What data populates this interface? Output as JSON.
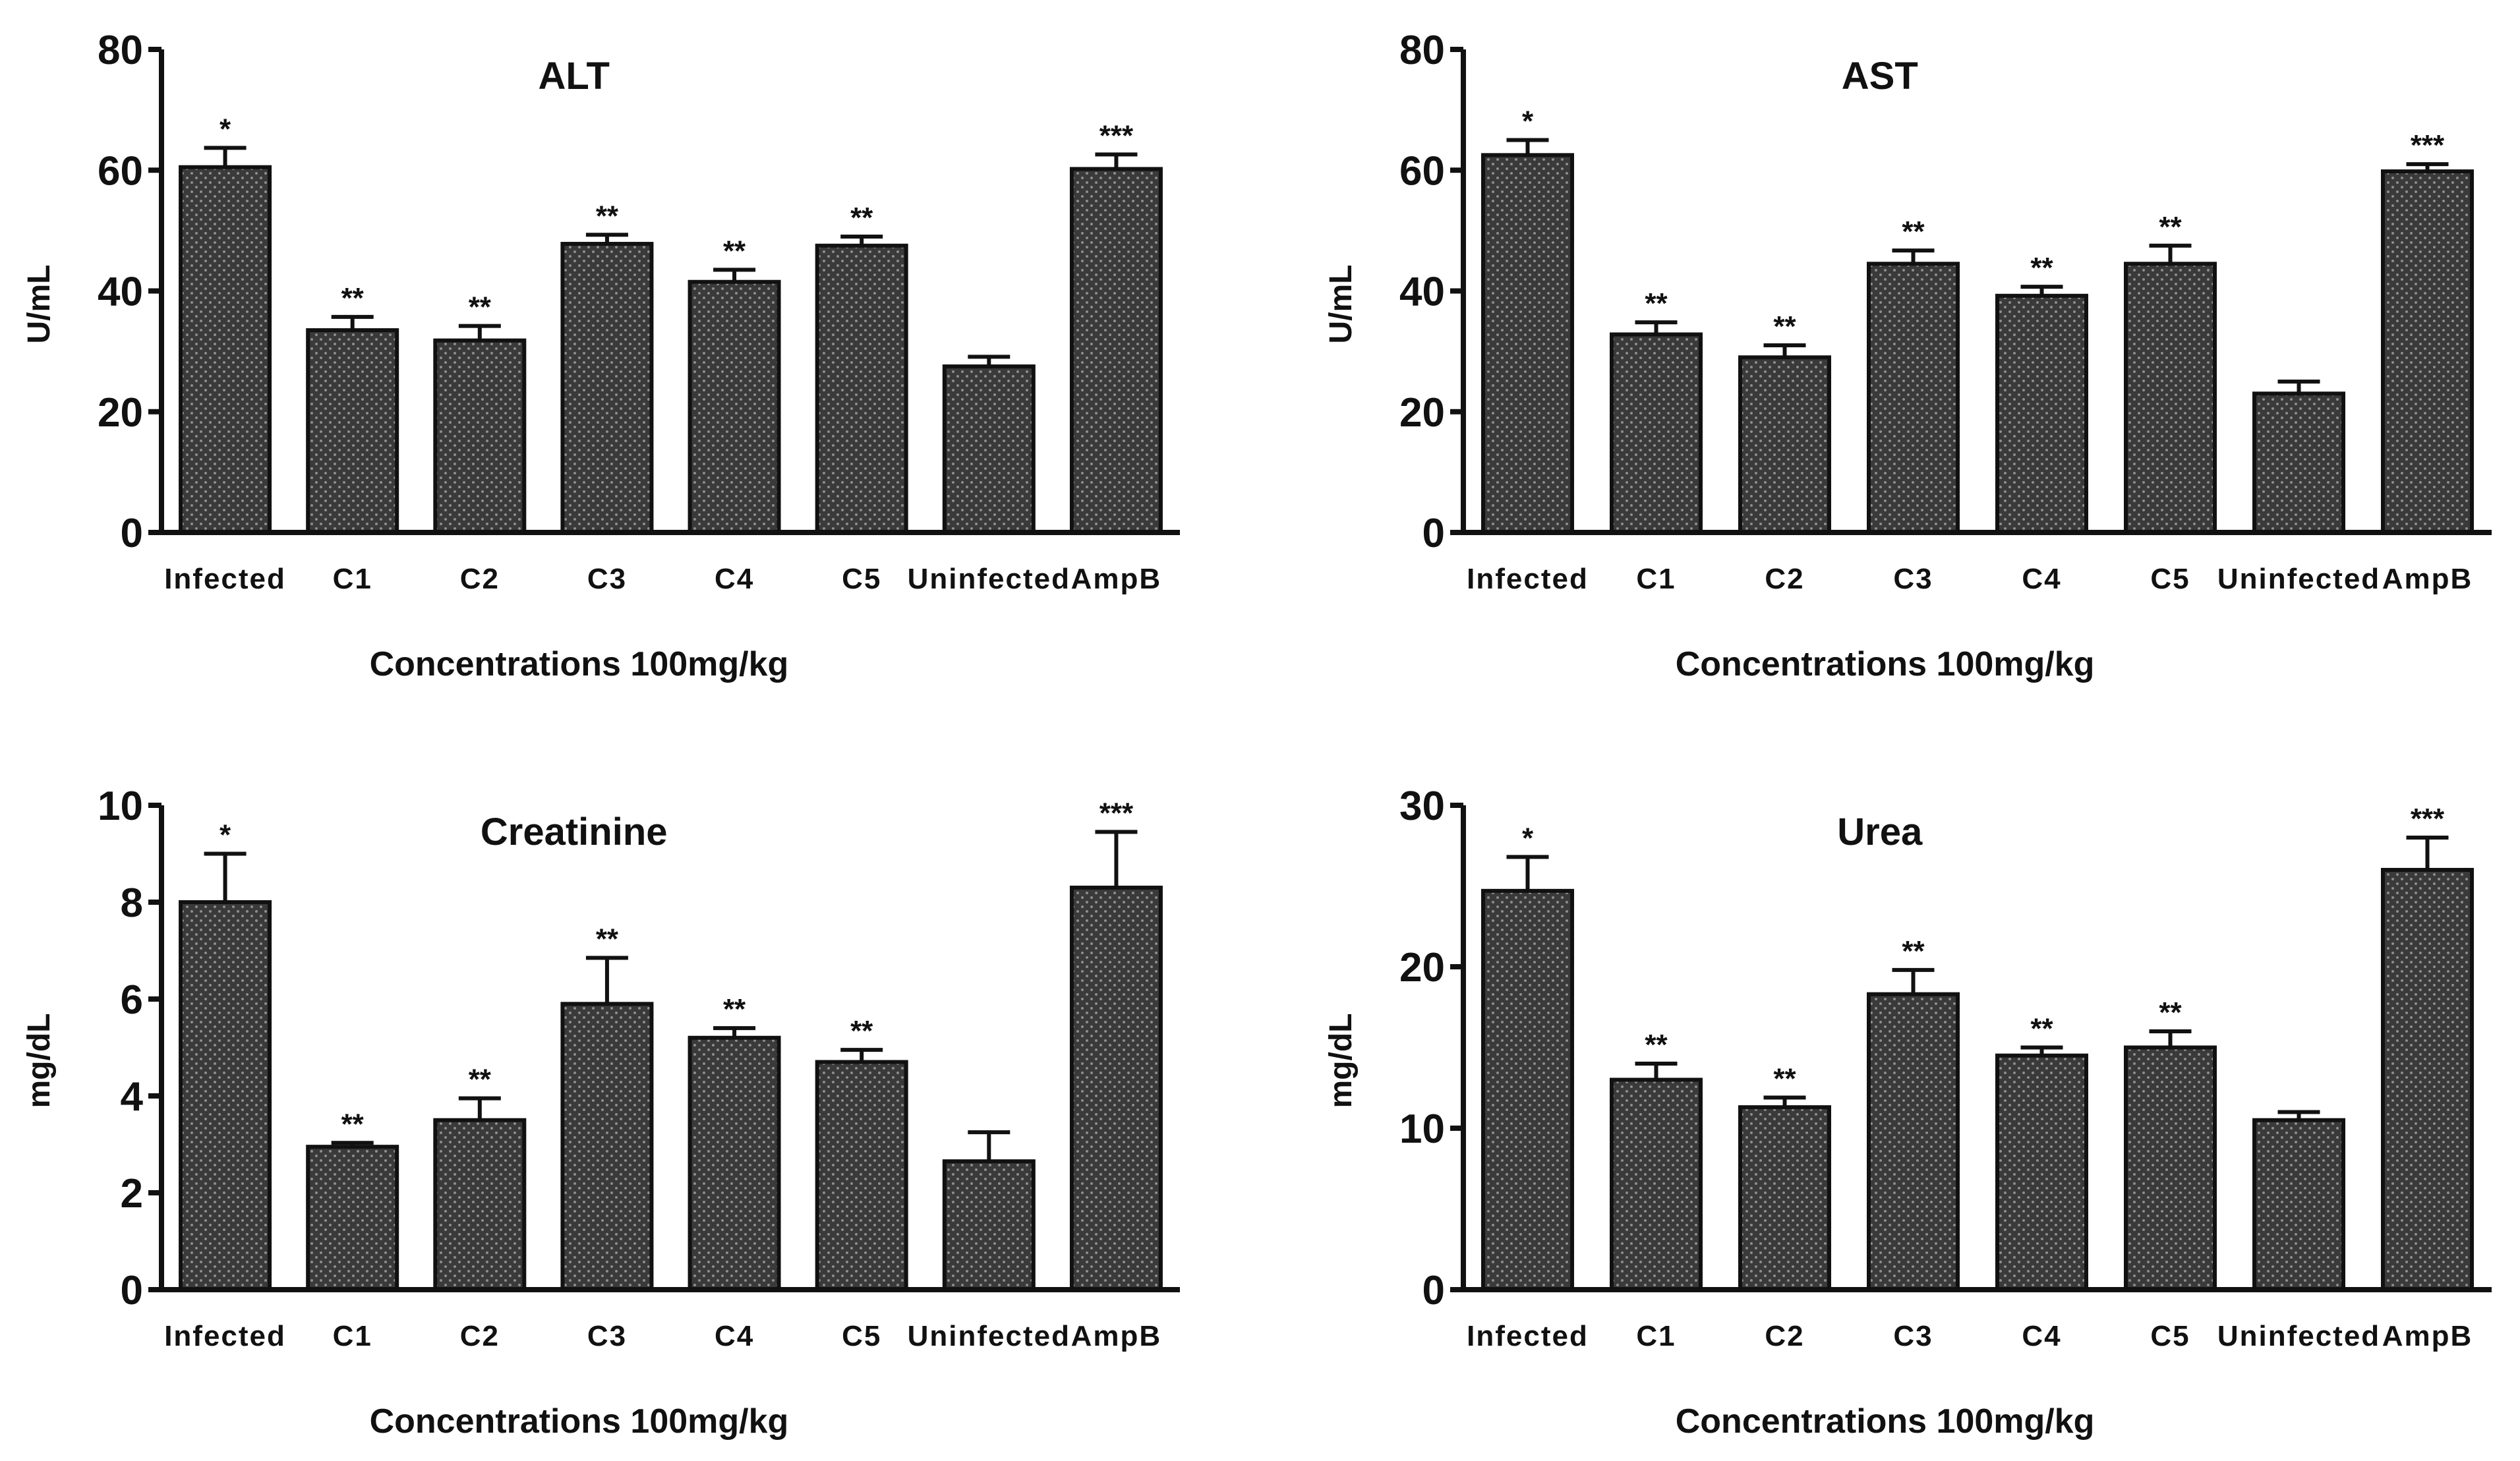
{
  "figure": {
    "background": "#ffffff",
    "bar_color": "#3a3a3a",
    "axis_color": "#111111"
  },
  "chart_data": [
    {
      "type": "bar",
      "title": "ALT",
      "xlabel": "Concentrations 100mg/kg",
      "ylabel": "U/mL",
      "ylim": [
        0,
        80
      ],
      "yticks": [
        0,
        20,
        40,
        60,
        80
      ],
      "categories": [
        "Infected",
        "C1",
        "C2",
        "C3",
        "C4",
        "C5",
        "Uninfected",
        "AmpB"
      ],
      "values": [
        60.5,
        33.5,
        31.8,
        47.8,
        41.5,
        47.5,
        27.5,
        60.2
      ],
      "errors": [
        3.2,
        2.2,
        2.4,
        1.5,
        2.0,
        1.5,
        1.6,
        2.4
      ],
      "significance": [
        "*",
        "**",
        "**",
        "**",
        "**",
        "**",
        "",
        "***"
      ]
    },
    {
      "type": "bar",
      "title": "AST",
      "xlabel": "Concentrations 100mg/kg",
      "ylabel": "U/mL",
      "ylim": [
        0,
        80
      ],
      "yticks": [
        0,
        20,
        40,
        60,
        80
      ],
      "categories": [
        "Infected",
        "C1",
        "C2",
        "C3",
        "C4",
        "C5",
        "Uninfected",
        "AmpB"
      ],
      "values": [
        62.5,
        32.8,
        29.0,
        44.5,
        39.2,
        44.5,
        23.0,
        59.8
      ],
      "errors": [
        2.5,
        2.0,
        2.0,
        2.2,
        1.5,
        3.0,
        2.0,
        1.2
      ],
      "significance": [
        "*",
        "**",
        "**",
        "**",
        "**",
        "**",
        "",
        "***"
      ]
    },
    {
      "type": "bar",
      "title": "Creatinine",
      "xlabel": "Concentrations 100mg/kg",
      "ylabel": "mg/dL",
      "ylim": [
        0,
        10
      ],
      "yticks": [
        0,
        2,
        4,
        6,
        8,
        10
      ],
      "categories": [
        "Infected",
        "C1",
        "C2",
        "C3",
        "C4",
        "C5",
        "Uninfected",
        "AmpB"
      ],
      "values": [
        8.0,
        2.95,
        3.5,
        5.9,
        5.2,
        4.7,
        2.65,
        8.3
      ],
      "errors": [
        1.0,
        0.08,
        0.45,
        0.95,
        0.2,
        0.25,
        0.6,
        1.15
      ],
      "significance": [
        "*",
        "**",
        "**",
        "**",
        "**",
        "**",
        "",
        "***"
      ]
    },
    {
      "type": "bar",
      "title": "Urea",
      "xlabel": "Concentrations 100mg/kg",
      "ylabel": "mg/dL",
      "ylim": [
        0,
        30
      ],
      "yticks": [
        0,
        10,
        20,
        30
      ],
      "categories": [
        "Infected",
        "C1",
        "C2",
        "C3",
        "C4",
        "C5",
        "Uninfected",
        "AmpB"
      ],
      "values": [
        24.7,
        13.0,
        11.3,
        18.3,
        14.5,
        15.0,
        10.5,
        26.0
      ],
      "errors": [
        2.1,
        1.0,
        0.6,
        1.5,
        0.5,
        1.0,
        0.5,
        2.0
      ],
      "significance": [
        "*",
        "**",
        "**",
        "**",
        "**",
        "**",
        "",
        "***"
      ]
    }
  ]
}
